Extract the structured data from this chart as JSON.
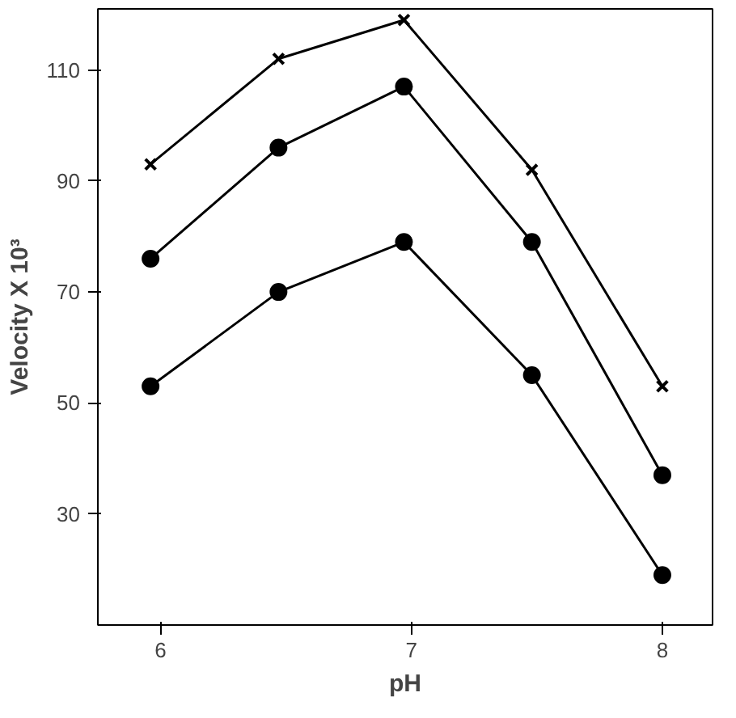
{
  "chart_data": {
    "type": "line",
    "xlabel": "pH",
    "ylabel": "Velocity X 10³",
    "x": [
      5.96,
      6.47,
      6.97,
      7.48,
      8.0
    ],
    "series": [
      {
        "color": "#000000",
        "marker": "cross",
        "values": [
          93,
          112,
          119,
          92,
          53
        ]
      },
      {
        "color": "#000000",
        "marker": "circle",
        "values": [
          76,
          96,
          107,
          79,
          37
        ]
      },
      {
        "color": "#000000",
        "marker": "circle",
        "values": [
          53,
          70,
          79,
          55,
          19
        ]
      }
    ],
    "xlim": [
      5.75,
      8.2
    ],
    "xticks": [
      6,
      7,
      8
    ],
    "ylim": [
      10,
      121
    ],
    "yticks": [
      30,
      50,
      70,
      90,
      110
    ],
    "grid": false
  }
}
